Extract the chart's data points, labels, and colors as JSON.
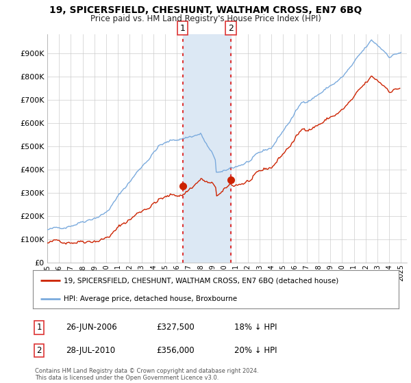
{
  "title": "19, SPICERSFIELD, CHESHUNT, WALTHAM CROSS, EN7 6BQ",
  "subtitle": "Price paid vs. HM Land Registry's House Price Index (HPI)",
  "ytick_values": [
    0,
    100000,
    200000,
    300000,
    400000,
    500000,
    600000,
    700000,
    800000,
    900000
  ],
  "ylim": [
    0,
    980000
  ],
  "xlim_start": 1995,
  "xlim_end": 2025.5,
  "purchase1_date": 2006.48,
  "purchase1_price": 327500,
  "purchase2_date": 2010.57,
  "purchase2_price": 356000,
  "hpi_color": "#7aaadd",
  "price_color": "#cc2200",
  "highlight_color": "#dce8f4",
  "vline_color": "#dd3333",
  "legend_property_label": "19, SPICERSFIELD, CHESHUNT, WALTHAM CROSS, EN7 6BQ (detached house)",
  "legend_hpi_label": "HPI: Average price, detached house, Broxbourne",
  "table_row1": [
    "1",
    "26-JUN-2006",
    "£327,500",
    "18% ↓ HPI"
  ],
  "table_row2": [
    "2",
    "28-JUL-2010",
    "£356,000",
    "20% ↓ HPI"
  ],
  "footnote": "Contains HM Land Registry data © Crown copyright and database right 2024.\nThis data is licensed under the Open Government Licence v3.0.",
  "background_color": "#ffffff",
  "plot_bg_color": "#ffffff",
  "grid_color": "#cccccc"
}
